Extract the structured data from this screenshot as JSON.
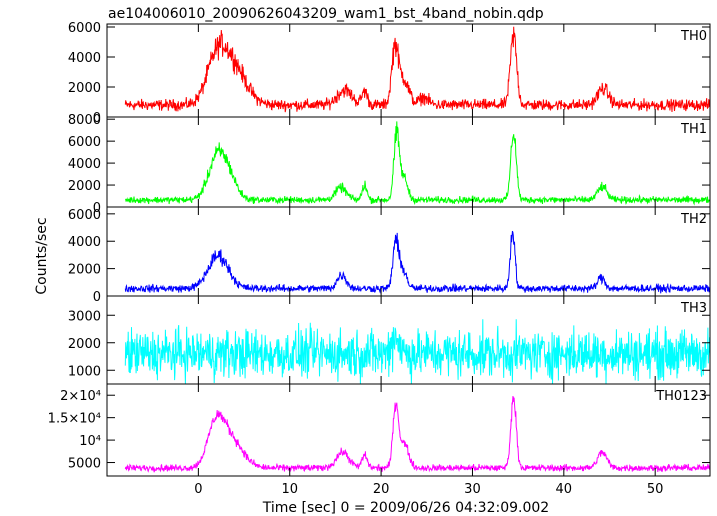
{
  "chart_data": {
    "type": "line",
    "title": "ae104006010_20090626043209_wam1_bst_4band_nobin.qdp",
    "xlabel": "Time [sec] 0 = 2009/06/26 04:32:09.002",
    "ylabel": "Counts/sec",
    "xlim": [
      -10,
      56
    ],
    "x_ticks": [
      0,
      10,
      20,
      30,
      40,
      50
    ],
    "x_tick_labels": [
      "0",
      "10",
      "20",
      "30",
      "40",
      "50"
    ],
    "grid": false,
    "panels": [
      {
        "name": "TH0",
        "color": "#ff0000",
        "ylim": [
          0,
          6200
        ],
        "y_ticks": [
          0,
          2000,
          4000,
          6000
        ],
        "y_tick_labels": [
          "0",
          "2000",
          "4000",
          "6000"
        ],
        "baseline": 800,
        "noise": 550,
        "peaks": [
          {
            "t": 2.0,
            "amp": 2700,
            "w": 1.1
          },
          {
            "t": 3.8,
            "amp": 2500,
            "w": 1.4
          },
          {
            "t": 16.0,
            "amp": 1000,
            "w": 0.8
          },
          {
            "t": 18.2,
            "amp": 900,
            "w": 0.3
          },
          {
            "t": 21.5,
            "amp": 3500,
            "w": 0.35
          },
          {
            "t": 22.4,
            "amp": 1800,
            "w": 0.6
          },
          {
            "t": 24.7,
            "amp": 500,
            "w": 0.5
          },
          {
            "t": 34.5,
            "amp": 4600,
            "w": 0.35
          },
          {
            "t": 44.3,
            "amp": 1100,
            "w": 0.6
          }
        ]
      },
      {
        "name": "TH1",
        "color": "#00ff00",
        "ylim": [
          0,
          8200
        ],
        "y_ticks": [
          0,
          2000,
          4000,
          6000,
          8000
        ],
        "y_tick_labels": [
          "0",
          "2000",
          "4000",
          "6000",
          "8000"
        ],
        "baseline": 650,
        "noise": 450,
        "peaks": [
          {
            "t": 1.9,
            "amp": 3300,
            "w": 0.9
          },
          {
            "t": 3.2,
            "amp": 2300,
            "w": 0.9
          },
          {
            "t": 15.6,
            "amp": 1100,
            "w": 0.6
          },
          {
            "t": 18.2,
            "amp": 1400,
            "w": 0.25
          },
          {
            "t": 21.7,
            "amp": 5800,
            "w": 0.3
          },
          {
            "t": 22.5,
            "amp": 2000,
            "w": 0.4
          },
          {
            "t": 34.5,
            "amp": 6200,
            "w": 0.3
          },
          {
            "t": 44.2,
            "amp": 1200,
            "w": 0.5
          }
        ]
      },
      {
        "name": "TH2",
        "color": "#0000ff",
        "ylim": [
          0,
          6500
        ],
        "y_ticks": [
          0,
          2000,
          4000,
          6000
        ],
        "y_tick_labels": [
          "0",
          "2000",
          "4000",
          "6000"
        ],
        "baseline": 550,
        "noise": 400,
        "peaks": [
          {
            "t": 2.2,
            "amp": 2400,
            "w": 1.1
          },
          {
            "t": 15.7,
            "amp": 1000,
            "w": 0.5
          },
          {
            "t": 21.6,
            "amp": 3500,
            "w": 0.3
          },
          {
            "t": 22.4,
            "amp": 1400,
            "w": 0.4
          },
          {
            "t": 34.4,
            "amp": 4300,
            "w": 0.25
          },
          {
            "t": 44.1,
            "amp": 800,
            "w": 0.4
          }
        ]
      },
      {
        "name": "TH3",
        "color": "#00ffff",
        "ylim": [
          500,
          3700
        ],
        "y_ticks": [
          1000,
          2000,
          3000
        ],
        "y_tick_labels": [
          "1000",
          "2000",
          "3000"
        ],
        "baseline": 1600,
        "noise": 1300,
        "peaks": [
          {
            "t": 21.6,
            "amp": 700,
            "w": 0.4
          }
        ]
      },
      {
        "name": "TH0123",
        "color": "#ff00ff",
        "ylim": [
          2000,
          22500
        ],
        "y_ticks": [
          5000,
          10000,
          15000,
          20000
        ],
        "y_tick_labels": [
          "5000",
          "10⁴",
          "1.5×10⁴",
          "2×10⁴"
        ],
        "baseline": 3800,
        "noise": 1100,
        "peaks": [
          {
            "t": 1.9,
            "amp": 8500,
            "w": 0.9
          },
          {
            "t": 3.5,
            "amp": 6500,
            "w": 1.3
          },
          {
            "t": 15.8,
            "amp": 3500,
            "w": 0.7
          },
          {
            "t": 18.2,
            "amp": 2800,
            "w": 0.3
          },
          {
            "t": 21.6,
            "amp": 13500,
            "w": 0.3
          },
          {
            "t": 22.5,
            "amp": 5500,
            "w": 0.5
          },
          {
            "t": 34.5,
            "amp": 15500,
            "w": 0.3
          },
          {
            "t": 44.2,
            "amp": 3500,
            "w": 0.5
          }
        ]
      }
    ]
  }
}
